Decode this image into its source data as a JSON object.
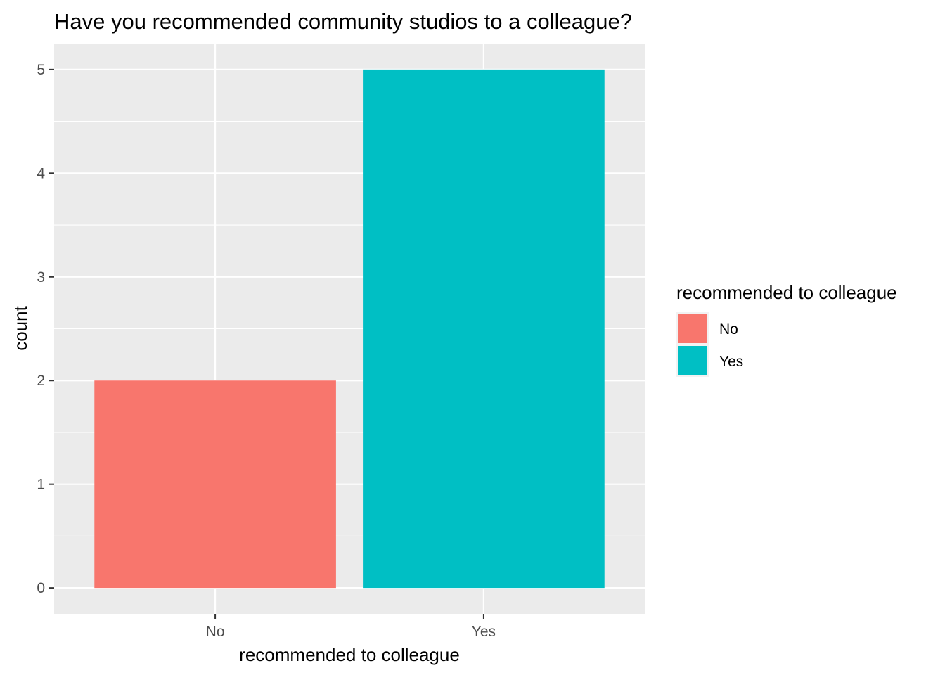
{
  "chart_data": {
    "type": "bar",
    "title": "Have you recommended community studios to a colleague?",
    "xlabel": "recommended to colleague",
    "ylabel": "count",
    "categories": [
      "No",
      "Yes"
    ],
    "values": [
      2,
      5
    ],
    "colors": [
      "#F8766D",
      "#00BFC4"
    ],
    "ylim": [
      -0.25,
      5.25
    ],
    "yticks": [
      0,
      1,
      2,
      3,
      4,
      5
    ],
    "grid": true,
    "panel_background": "#EBEBEB",
    "legend": {
      "title": "recommended to colleague",
      "position": "right",
      "entries": [
        "No",
        "Yes"
      ]
    }
  }
}
